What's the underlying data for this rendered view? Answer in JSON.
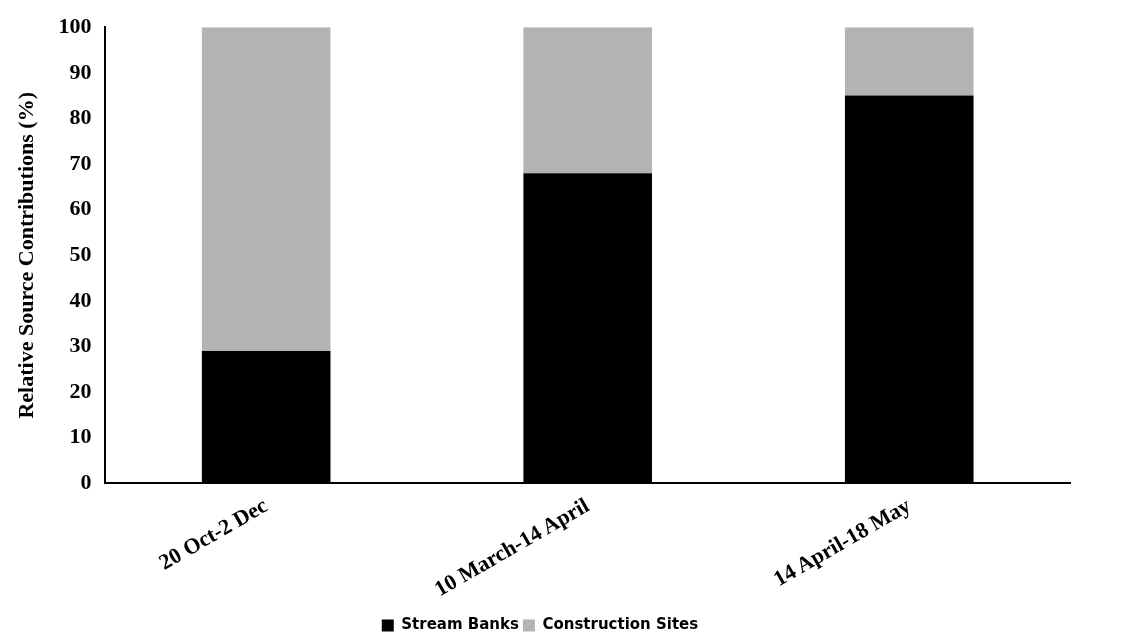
{
  "chart_data": {
    "type": "bar",
    "stacked": true,
    "ylabel": "Relative Source Contributions (%)",
    "categories": [
      "20 Oct-2 Dec",
      "10 March-14 April",
      "14 April-18 May"
    ],
    "series": [
      {
        "name": "Stream Banks",
        "color": "#000000",
        "values": [
          29,
          68,
          85
        ]
      },
      {
        "name": "Construction Sites",
        "color": "#b3b3b3",
        "values": [
          71,
          32,
          15
        ]
      }
    ],
    "ylim": [
      0,
      100
    ],
    "yticks": [
      0,
      10,
      20,
      30,
      40,
      50,
      60,
      70,
      80,
      90,
      100
    ],
    "grid": false,
    "legend": "bottom"
  }
}
